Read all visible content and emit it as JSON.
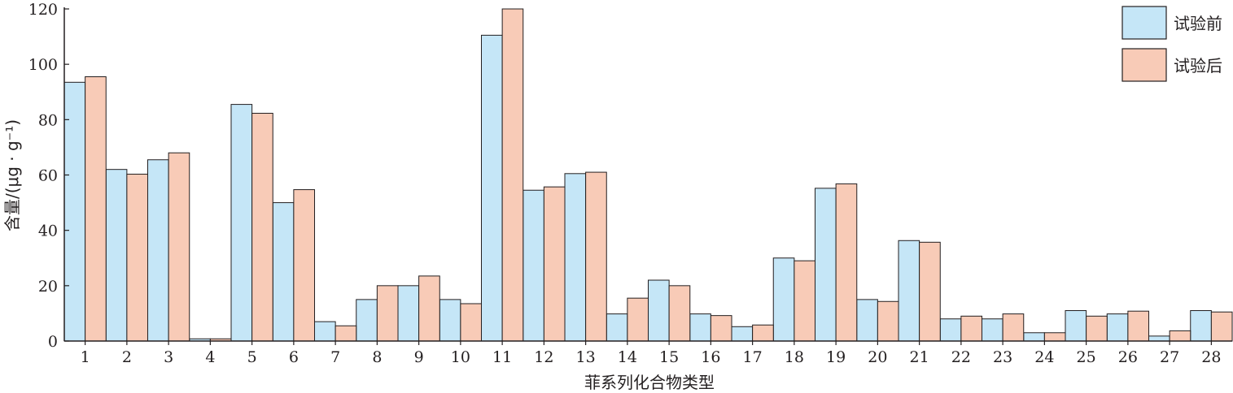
{
  "chart_data": {
    "type": "bar",
    "title": "",
    "xlabel": "菲系列化合物类型",
    "ylabel": "含量/(μg · g⁻¹)",
    "ylim": [
      0,
      120
    ],
    "yticks": [
      0,
      20,
      40,
      60,
      80,
      100,
      120
    ],
    "grid": false,
    "legend_position": "top-right",
    "categories": [
      "1",
      "2",
      "3",
      "4",
      "5",
      "6",
      "7",
      "8",
      "9",
      "10",
      "11",
      "12",
      "13",
      "14",
      "15",
      "16",
      "17",
      "18",
      "19",
      "20",
      "21",
      "22",
      "23",
      "24",
      "25",
      "26",
      "27",
      "28"
    ],
    "series": [
      {
        "name": "试验前",
        "color": "#c5e6f7",
        "values": [
          93.5,
          62,
          65.5,
          0.8,
          85.5,
          50,
          7,
          15,
          20,
          15,
          110.5,
          54.5,
          60.5,
          9.8,
          22,
          9.8,
          5.2,
          30,
          55.2,
          15,
          36.3,
          8,
          8,
          3,
          11,
          9.8,
          1.8,
          11
        ]
      },
      {
        "name": "试验后",
        "color": "#f8cbb7",
        "values": [
          95.5,
          60.3,
          68,
          0.8,
          82.3,
          54.7,
          5.5,
          20,
          23.5,
          13.5,
          120,
          55.7,
          61,
          15.5,
          20,
          9.2,
          5.8,
          29,
          56.8,
          14.3,
          35.7,
          9,
          9.8,
          3,
          9,
          10.8,
          3.7,
          10.5
        ]
      }
    ]
  }
}
